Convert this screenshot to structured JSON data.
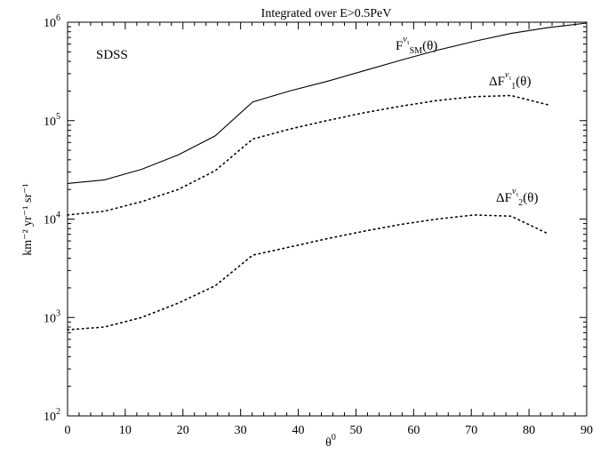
{
  "chart_data": {
    "type": "line",
    "title": "Integrated over E>0.5PeV",
    "xlabel": "θ",
    "xlabel_sup": "0",
    "ylabel": "km⁻² yr⁻¹ sr⁻¹",
    "xlim": [
      0,
      90
    ],
    "ylim": [
      100,
      1000000
    ],
    "yscale": "log",
    "grid": false,
    "x_ticks": [
      "0",
      "10",
      "20",
      "30",
      "40",
      "50",
      "60",
      "70",
      "80",
      "90"
    ],
    "y_ticks": [
      {
        "base": "10",
        "exp": "2"
      },
      {
        "base": "10",
        "exp": "3"
      },
      {
        "base": "10",
        "exp": "4"
      },
      {
        "base": "10",
        "exp": "5"
      },
      {
        "base": "10",
        "exp": "6"
      }
    ],
    "annotation": "SDSS",
    "series": [
      {
        "name": "F^ντ_SM(θ)",
        "label": {
          "pre": "F",
          "sup": "ν",
          "supsub": "τ",
          "sub": "SM",
          "post": "(θ)"
        },
        "style": "solid",
        "x": [
          0,
          6.4,
          12.8,
          19.2,
          25.6,
          32.1,
          38.5,
          44.9,
          51.3,
          57.7,
          64.1,
          70.5,
          76.9,
          83.3,
          90
        ],
        "y": [
          23000,
          25000,
          32000,
          45000,
          70000,
          155000,
          200000,
          250000,
          320000,
          410000,
          520000,
          640000,
          770000,
          880000,
          980000
        ]
      },
      {
        "name": "ΔF^ντ_1(θ)",
        "label": {
          "pre": "ΔF",
          "sup": "ν",
          "supsub": "τ",
          "sub": "1",
          "post": "(θ)"
        },
        "style": "dotted",
        "x": [
          0,
          6.4,
          12.8,
          19.2,
          25.6,
          32.1,
          38.5,
          44.9,
          51.3,
          57.7,
          64.1,
          70.5,
          76.9,
          83.3
        ],
        "y": [
          11000,
          12000,
          15000,
          20000,
          31000,
          65000,
          82000,
          100000,
          120000,
          140000,
          160000,
          175000,
          180000,
          145000
        ]
      },
      {
        "name": "ΔF^ντ_2(θ)",
        "label": {
          "pre": "ΔF",
          "sup": "ν",
          "supsub": "τ",
          "sub": "2",
          "post": "(θ)"
        },
        "style": "dotted",
        "x": [
          0,
          6.4,
          12.8,
          19.2,
          25.6,
          32.1,
          38.5,
          44.9,
          51.3,
          57.7,
          64.1,
          70.5,
          76.9,
          83.3
        ],
        "y": [
          750,
          800,
          1000,
          1400,
          2100,
          4300,
          5200,
          6300,
          7500,
          8800,
          10000,
          11000,
          10700,
          7100
        ]
      }
    ]
  }
}
